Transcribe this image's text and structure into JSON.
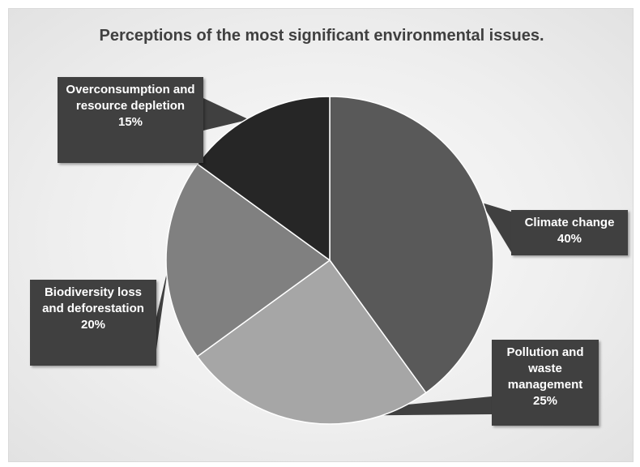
{
  "chart_data": {
    "type": "pie",
    "title": "Perceptions of the most significant environmental issues.",
    "slices": [
      {
        "name": "Climate change",
        "value": 40,
        "percent_label": "40%",
        "color": "#595959"
      },
      {
        "name": "Pollution and waste management",
        "value": 25,
        "percent_label": "25%",
        "color": "#a6a6a6"
      },
      {
        "name": "Biodiversity loss and deforestation",
        "value": 20,
        "percent_label": "20%",
        "color": "#808080"
      },
      {
        "name": "Overconsumption and resource depletion",
        "value": 15,
        "percent_label": "15%",
        "color": "#262626"
      }
    ],
    "legend": "none",
    "data_labels": "callouts"
  }
}
